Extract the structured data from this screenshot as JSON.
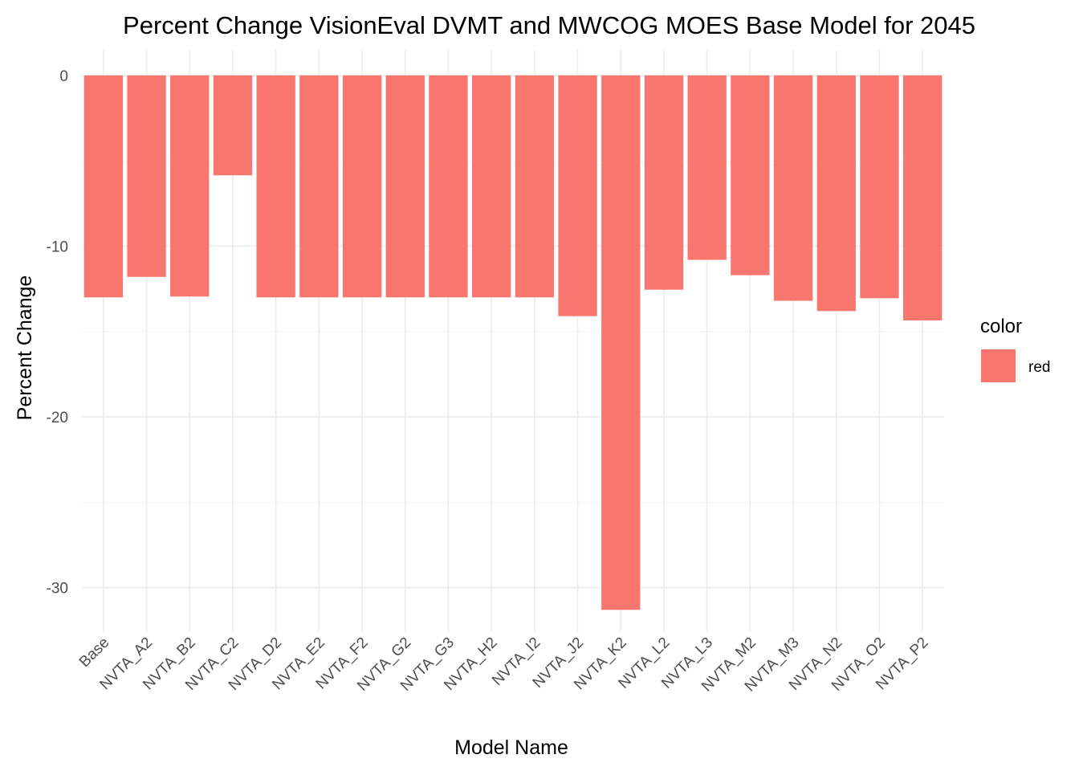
{
  "chart_data": {
    "type": "bar",
    "title": "Percent Change VisionEval DVMT and MWCOG MOES Base Model for 2045",
    "xlabel": "Model Name",
    "ylabel": "Percent Change",
    "categories": [
      "Base",
      "NVTA_A2",
      "NVTA_B2",
      "NVTA_C2",
      "NVTA_D2",
      "NVTA_E2",
      "NVTA_F2",
      "NVTA_G2",
      "NVTA_G3",
      "NVTA_H2",
      "NVTA_I2",
      "NVTA_J2",
      "NVTA_K2",
      "NVTA_L2",
      "NVTA_L3",
      "NVTA_M2",
      "NVTA_M3",
      "NVTA_N2",
      "NVTA_O2",
      "NVTA_P2"
    ],
    "series": [
      {
        "name": "red",
        "values": [
          -13.0,
          -11.8,
          -12.95,
          -5.85,
          -13.0,
          -13.0,
          -13.0,
          -13.0,
          -13.0,
          -13.0,
          -13.0,
          -14.1,
          -31.3,
          -12.55,
          -10.8,
          -11.7,
          -13.2,
          -13.8,
          -13.05,
          -14.35
        ]
      }
    ],
    "ylim": [
      -32.6,
      1.5
    ],
    "yticks": [
      0,
      -10,
      -20,
      -30
    ],
    "ytick_labels": [
      "0",
      "-10",
      "-20",
      "-30"
    ],
    "grid": true,
    "legend": {
      "title": "color",
      "position": "right",
      "entries": [
        "red"
      ]
    },
    "colors": {
      "bar": "#F8766D"
    }
  }
}
